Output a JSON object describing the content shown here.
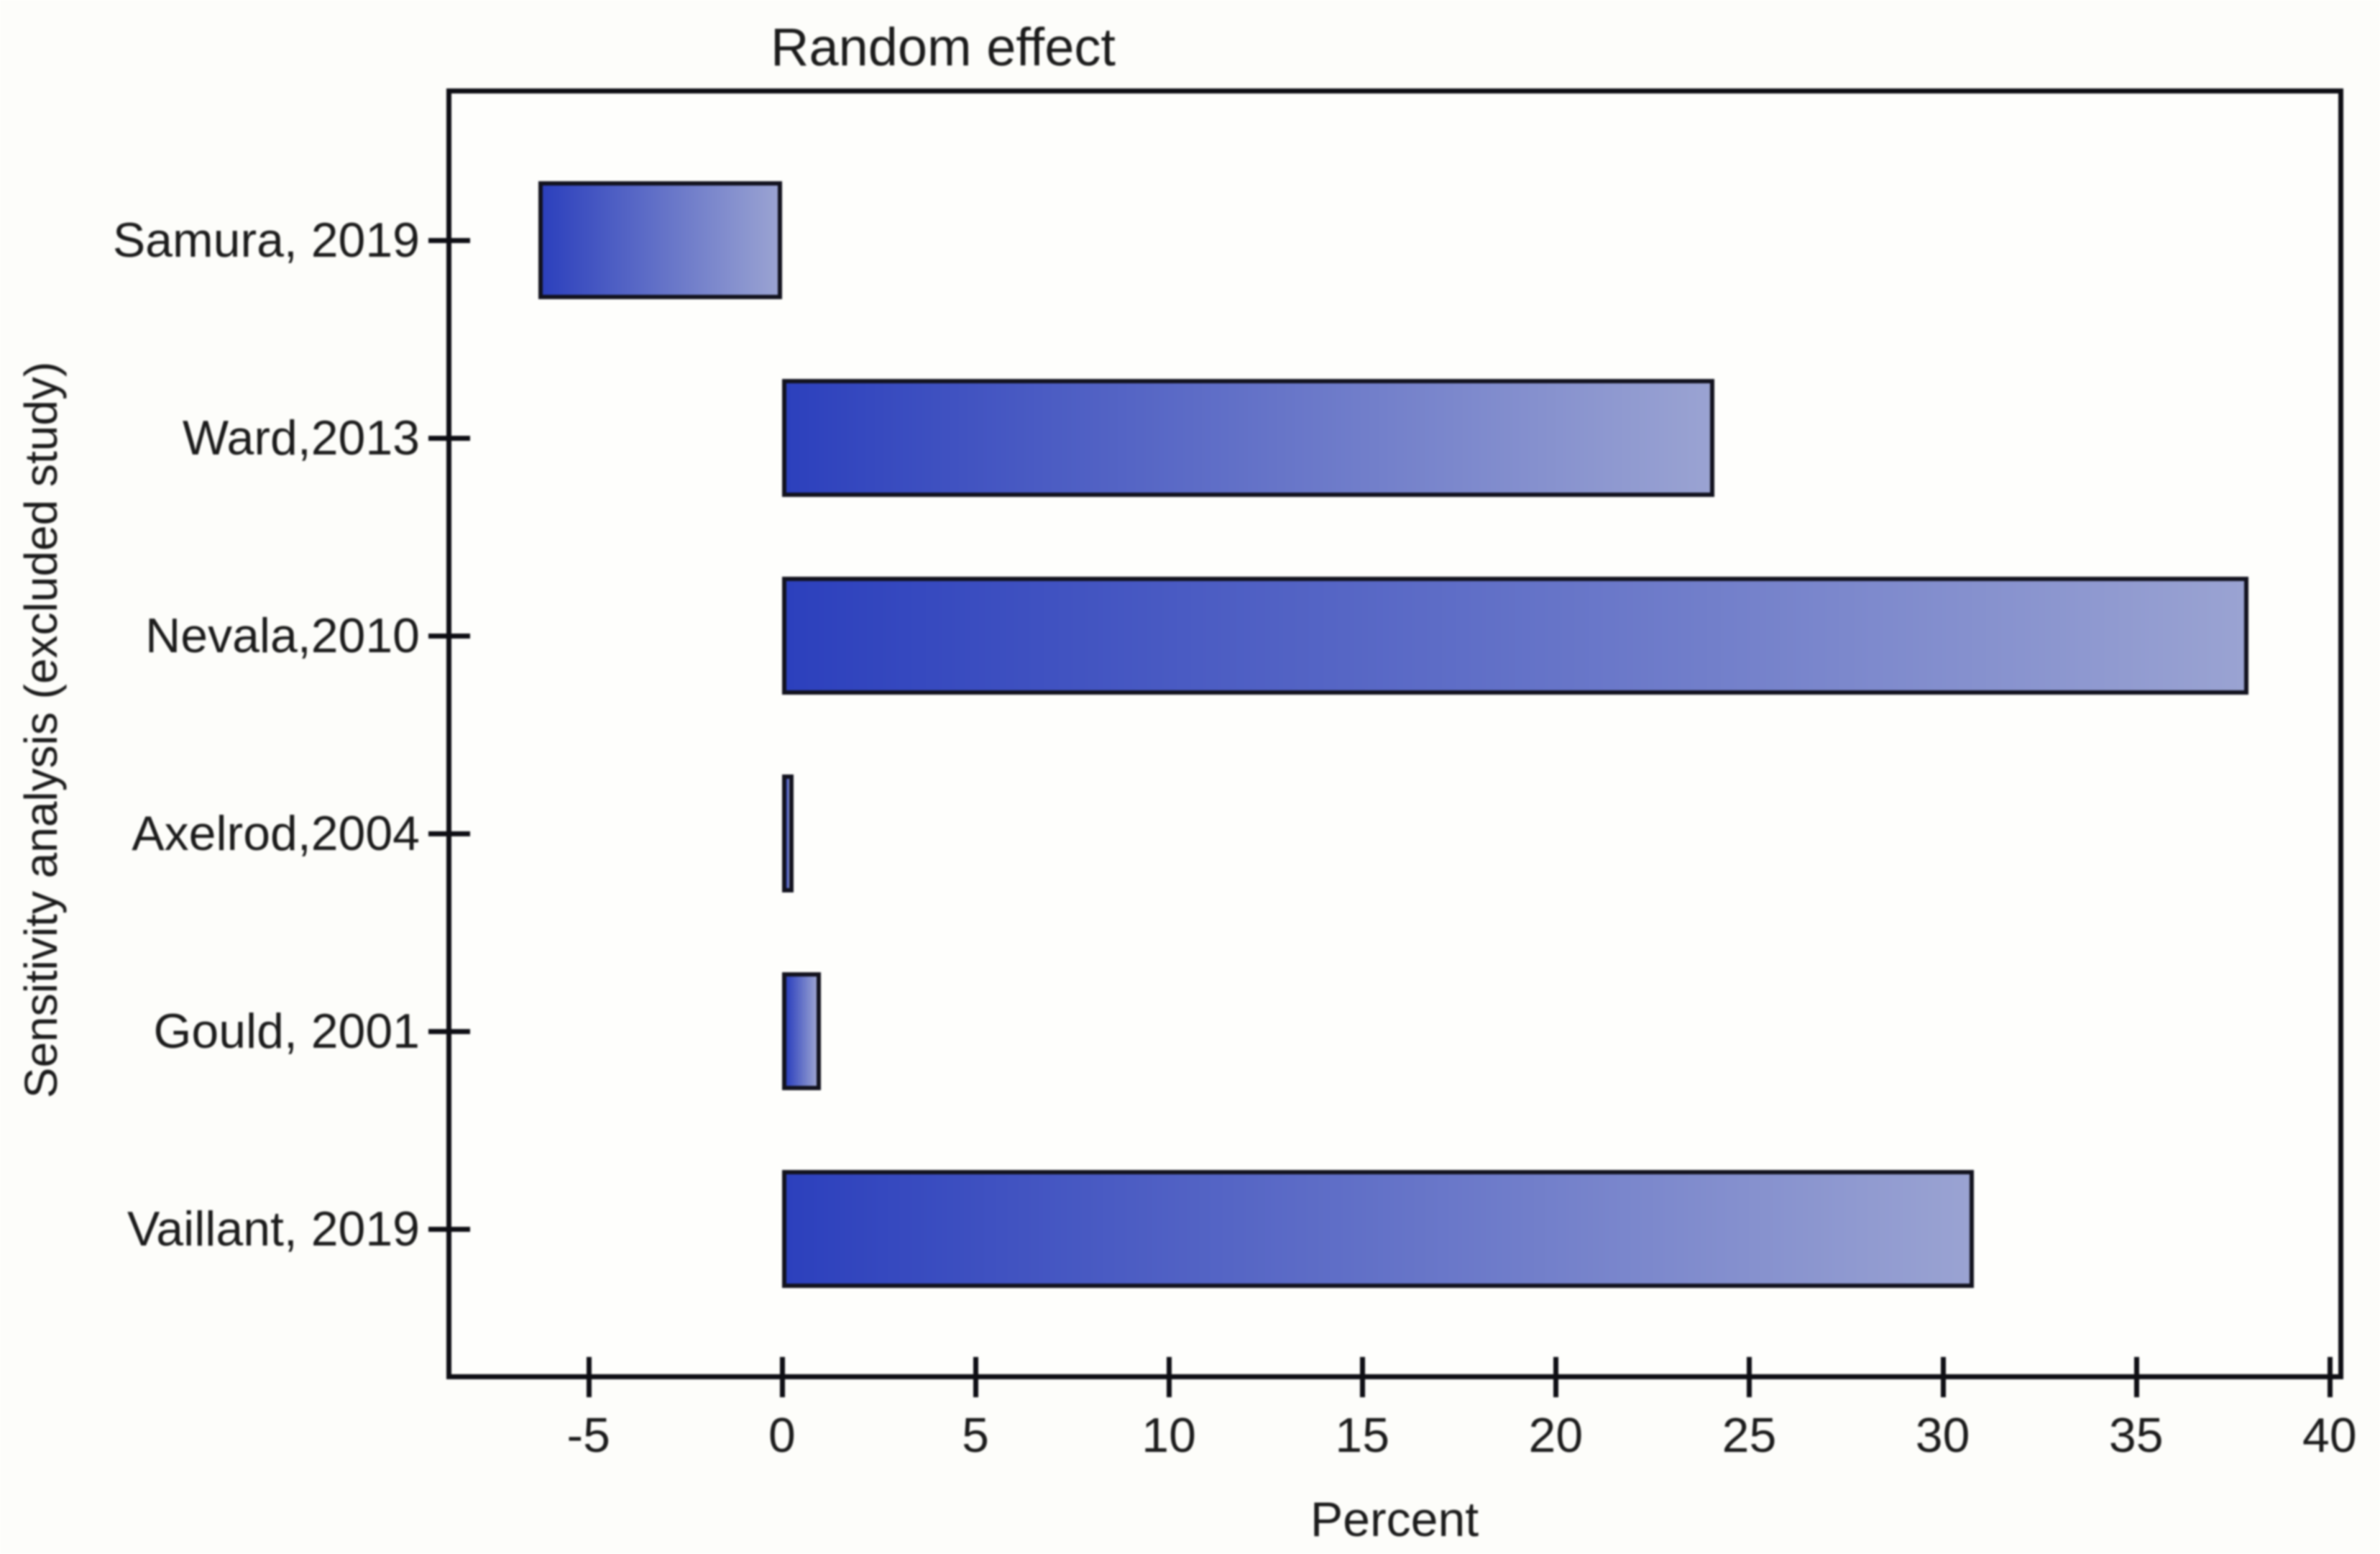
{
  "chart_data": {
    "type": "bar",
    "orientation": "horizontal",
    "title": "Random effect",
    "xlabel": "Percent",
    "ylabel": "Sensitivity analysis (excluded study)",
    "categories": [
      "Samura, 2019",
      "Ward,2013",
      "Nevala,2010",
      "Axelrod,2004",
      "Gould, 2001",
      "Vaillant, 2019"
    ],
    "values": [
      -6.3,
      24.1,
      37.9,
      0.3,
      1.0,
      30.8
    ],
    "baseline": 0,
    "xticks": [
      -5,
      0,
      5,
      10,
      15,
      20,
      25,
      30,
      35,
      40
    ],
    "xtick_labels": [
      "-5",
      "0",
      "5",
      "10",
      "15",
      "20",
      "25",
      "30",
      "35",
      "40"
    ],
    "xlim": [
      -8.6,
      40.3
    ],
    "grid": false,
    "legend": null,
    "colors": {
      "bar_gradient_start": "#2c40bd",
      "bar_gradient_end": "#9aa3d2",
      "bar_border": "#12121e",
      "axis": "#0e0e14",
      "text": "#1b1b1b",
      "background": "#fdfdfa"
    }
  }
}
